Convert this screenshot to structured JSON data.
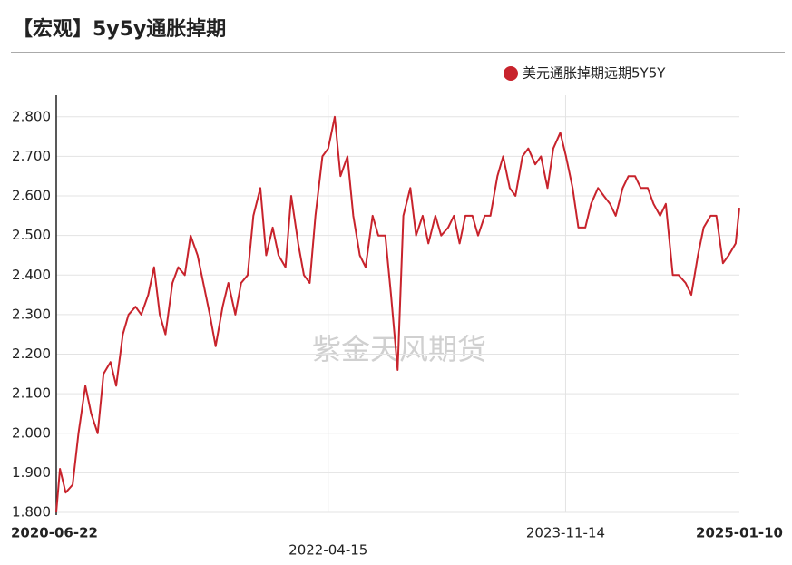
{
  "chart_data": {
    "type": "line",
    "title": "【宏观】5y5y通胀掉期",
    "watermark": "紫金天风期货",
    "x": [
      "2020-06-22",
      "2020-07-01",
      "2020-07-15",
      "2020-08-01",
      "2020-08-15",
      "2020-09-01",
      "2020-09-15",
      "2020-10-01",
      "2020-10-15",
      "2020-11-01",
      "2020-11-15",
      "2020-12-01",
      "2020-12-15",
      "2021-01-01",
      "2021-01-15",
      "2021-02-01",
      "2021-02-15",
      "2021-03-01",
      "2021-03-15",
      "2021-04-01",
      "2021-04-15",
      "2021-05-01",
      "2021-05-15",
      "2021-06-01",
      "2021-06-15",
      "2021-07-01",
      "2021-07-15",
      "2021-08-01",
      "2021-08-15",
      "2021-09-01",
      "2021-09-15",
      "2021-10-01",
      "2021-10-15",
      "2021-11-01",
      "2021-11-15",
      "2021-12-01",
      "2021-12-15",
      "2022-01-01",
      "2022-01-15",
      "2022-02-01",
      "2022-02-15",
      "2022-03-01",
      "2022-03-15",
      "2022-04-01",
      "2022-04-15",
      "2022-05-01",
      "2022-05-15",
      "2022-06-01",
      "2022-06-15",
      "2022-07-01",
      "2022-07-15",
      "2022-08-01",
      "2022-08-15",
      "2022-09-01",
      "2022-09-15",
      "2022-10-01",
      "2022-10-15",
      "2022-11-01",
      "2022-11-15",
      "2022-12-01",
      "2022-12-15",
      "2023-01-01",
      "2023-01-15",
      "2023-02-01",
      "2023-02-15",
      "2023-03-01",
      "2023-03-15",
      "2023-04-01",
      "2023-04-15",
      "2023-05-01",
      "2023-05-15",
      "2023-06-01",
      "2023-06-15",
      "2023-07-01",
      "2023-07-15",
      "2023-08-01",
      "2023-08-15",
      "2023-09-01",
      "2023-09-15",
      "2023-10-01",
      "2023-10-15",
      "2023-11-01",
      "2023-11-15",
      "2023-12-01",
      "2023-12-15",
      "2024-01-01",
      "2024-01-15",
      "2024-02-01",
      "2024-02-15",
      "2024-03-01",
      "2024-03-15",
      "2024-04-01",
      "2024-04-15",
      "2024-05-01",
      "2024-05-15",
      "2024-06-01",
      "2024-06-15",
      "2024-07-01",
      "2024-07-15",
      "2024-08-01",
      "2024-08-15",
      "2024-09-01",
      "2024-09-15",
      "2024-10-01",
      "2024-10-15",
      "2024-11-01",
      "2024-11-15",
      "2024-12-01",
      "2024-12-15",
      "2025-01-01",
      "2025-01-10"
    ],
    "series": [
      {
        "name": "美元通胀掉期远期5Y5Y",
        "color": "#c8232c",
        "values": [
          1.8,
          1.91,
          1.85,
          1.87,
          2.0,
          2.12,
          2.05,
          2.0,
          2.15,
          2.18,
          2.12,
          2.25,
          2.3,
          2.32,
          2.3,
          2.35,
          2.42,
          2.3,
          2.25,
          2.38,
          2.42,
          2.4,
          2.5,
          2.45,
          2.38,
          2.3,
          2.22,
          2.32,
          2.38,
          2.3,
          2.38,
          2.4,
          2.55,
          2.62,
          2.45,
          2.52,
          2.45,
          2.42,
          2.6,
          2.48,
          2.4,
          2.38,
          2.55,
          2.7,
          2.72,
          2.8,
          2.65,
          2.7,
          2.55,
          2.45,
          2.42,
          2.55,
          2.5,
          2.5,
          2.35,
          2.16,
          2.55,
          2.62,
          2.5,
          2.55,
          2.48,
          2.55,
          2.5,
          2.52,
          2.55,
          2.48,
          2.55,
          2.55,
          2.5,
          2.55,
          2.55,
          2.65,
          2.7,
          2.62,
          2.6,
          2.7,
          2.72,
          2.68,
          2.7,
          2.62,
          2.72,
          2.76,
          2.7,
          2.62,
          2.52,
          2.52,
          2.58,
          2.62,
          2.6,
          2.58,
          2.55,
          2.62,
          2.65,
          2.65,
          2.62,
          2.62,
          2.58,
          2.55,
          2.58,
          2.4,
          2.4,
          2.38,
          2.35,
          2.45,
          2.52,
          2.55,
          2.55,
          2.43,
          2.45,
          2.48,
          2.57
        ]
      }
    ],
    "xlim": [
      "2020-06-22",
      "2025-01-10"
    ],
    "xticks": [
      "2022-04-15",
      "2023-11-14"
    ],
    "ylim": [
      1.8,
      2.85
    ],
    "yticks": [
      {
        "value": 1.8,
        "label": "1.800"
      },
      {
        "value": 1.9,
        "label": "1.900"
      },
      {
        "value": 2.0,
        "label": "2.000"
      },
      {
        "value": 2.1,
        "label": "2.100"
      },
      {
        "value": 2.2,
        "label": "2.200"
      },
      {
        "value": 2.3,
        "label": "2.300"
      },
      {
        "value": 2.4,
        "label": "2.400"
      },
      {
        "value": 2.5,
        "label": "2.500"
      },
      {
        "value": 2.6,
        "label": "2.600"
      },
      {
        "value": 2.7,
        "label": "2.700"
      },
      {
        "value": 2.8,
        "label": "2.800"
      }
    ],
    "grid": true
  }
}
